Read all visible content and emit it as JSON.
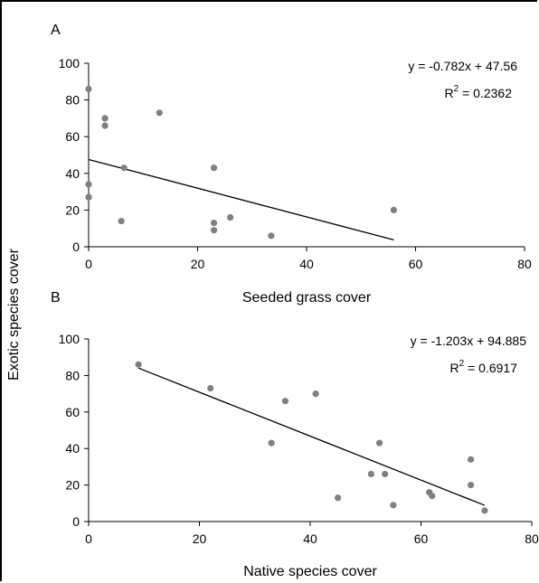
{
  "figure": {
    "shared_ylabel": "Exotic species cover"
  },
  "chart_data": [
    {
      "type": "scatter",
      "panel_label": "A",
      "title": "",
      "xlabel": "Seeded grass cover",
      "ylabel": "Exotic species cover",
      "xlim": [
        0,
        80
      ],
      "ylim": [
        0,
        100
      ],
      "x_ticks": [
        0,
        20,
        40,
        60,
        80
      ],
      "y_ticks": [
        0,
        20,
        40,
        60,
        80,
        100
      ],
      "grid": false,
      "legend": "none",
      "point_color": "#808080",
      "line_color": "#000000",
      "series": [
        {
          "x": [
            0,
            0,
            0,
            0,
            3,
            3,
            6,
            6.5,
            13,
            23,
            23,
            23,
            26,
            33.5,
            56
          ],
          "y": [
            86,
            34,
            27,
            27,
            70,
            66,
            14,
            43,
            73,
            43,
            13,
            9,
            16,
            6,
            20
          ]
        }
      ],
      "trendline": {
        "equation": "y = -0.782x + 47.56",
        "r2_prefix": "R",
        "r2_sup": "2",
        "r2_value": " = 0.2362",
        "slope": -0.782,
        "intercept": 47.56,
        "x_range": [
          0,
          56
        ]
      }
    },
    {
      "type": "scatter",
      "panel_label": "B",
      "title": "",
      "xlabel": "Native species cover",
      "ylabel": "Exotic species cover",
      "xlim": [
        0,
        80
      ],
      "ylim": [
        0,
        100
      ],
      "x_ticks": [
        0,
        20,
        40,
        60,
        80
      ],
      "y_ticks": [
        0,
        20,
        40,
        60,
        80,
        100
      ],
      "grid": false,
      "legend": "none",
      "point_color": "#808080",
      "line_color": "#000000",
      "series": [
        {
          "x": [
            9,
            22,
            33,
            35.5,
            41,
            45,
            51,
            52.5,
            53.5,
            55,
            61.5,
            62,
            69,
            69,
            71.5
          ],
          "y": [
            86,
            73,
            43,
            66,
            70,
            13,
            26,
            43,
            26,
            9,
            16,
            14,
            34,
            20,
            6
          ]
        }
      ],
      "trendline": {
        "equation": "y = -1.203x + 94.885",
        "r2_prefix": "R",
        "r2_sup": "2",
        "r2_value": " = 0.6917",
        "slope": -1.203,
        "intercept": 94.885,
        "x_range": [
          9,
          71.5
        ]
      }
    }
  ]
}
